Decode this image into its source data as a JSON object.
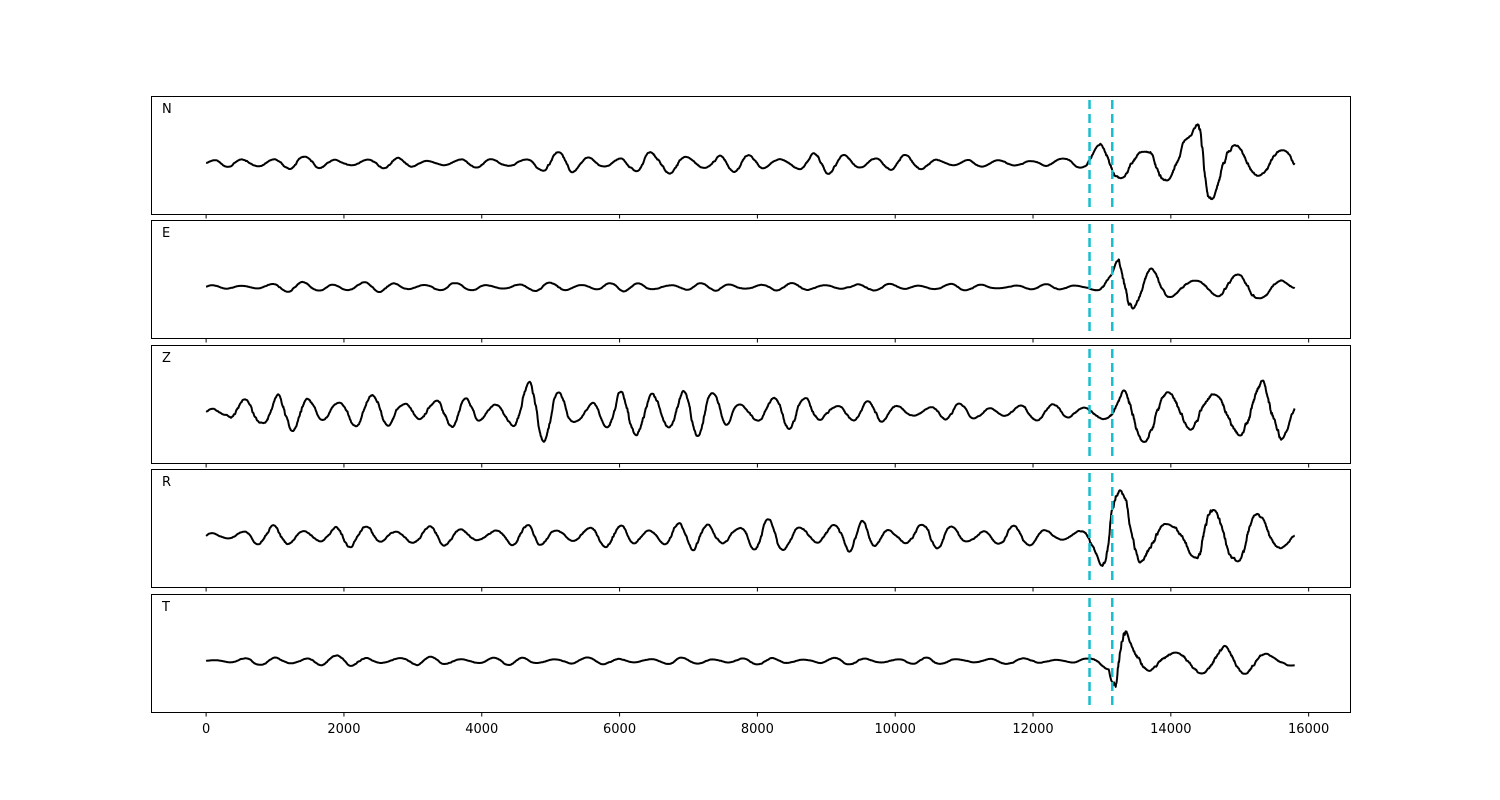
{
  "chart_data": {
    "type": "line",
    "title": "",
    "xlabel": "",
    "ylabel": "",
    "xlim": [
      -800,
      16600
    ],
    "x_ticks": [
      0,
      2000,
      4000,
      6000,
      8000,
      10000,
      12000,
      14000,
      16000
    ],
    "x_tick_labels": [
      "0",
      "2000",
      "4000",
      "6000",
      "8000",
      "10000",
      "12000",
      "14000",
      "16000"
    ],
    "grid": false,
    "legend": "none",
    "n_samples": 15800,
    "picks": [
      12820,
      13150
    ],
    "pick_color": "#17becf",
    "trace_color": "#000000",
    "panels": [
      {
        "label": "N",
        "series": [
          {
            "x": [
              0,
              500,
              900,
              1300,
              1500,
              2000,
              2600,
              3500,
              4300,
              4650,
              4950,
              5500,
              6100,
              6500,
              6800,
              7200,
              7800,
              8500,
              9200,
              10000,
              10800,
              11500,
              12200,
              12750,
              12950,
              13080,
              13200,
              13300,
              13450,
              13600,
              13750,
              13900,
              14100,
              14300,
              14440,
              14600,
              14800,
              15000,
              15200,
              15400,
              15600,
              15800
            ],
            "amplitude": [
              0.05,
              0.08,
              0.15,
              0.14,
              0.1,
              0.1,
              0.1,
              0.08,
              0.08,
              0.15,
              0.22,
              0.15,
              0.15,
              0.2,
              0.25,
              0.2,
              0.15,
              0.18,
              0.2,
              0.15,
              0.1,
              0.05,
              0.1,
              0.08,
              0.4,
              0.6,
              0.6,
              0.55,
              0.6,
              0.45,
              0.6,
              0.45,
              0.35,
              0.5,
              1.0,
              0.7,
              0.5,
              0.55,
              0.6,
              0.5,
              0.4,
              0.3
            ]
          }
        ]
      },
      {
        "label": "E",
        "series": [
          {
            "x": [
              0,
              500,
              1000,
              1500,
              2000,
              3000,
              4000,
              5000,
              6000,
              7000,
              8000,
              9000,
              10000,
              11000,
              12000,
              12800,
              13000,
              13150,
              13250,
              13300,
              13400,
              13550,
              13700,
              13900,
              14100,
              14400,
              14700,
              15000,
              15300,
              15600,
              15800
            ],
            "amplitude": [
              0.03,
              0.04,
              0.08,
              0.1,
              0.1,
              0.08,
              0.06,
              0.08,
              0.08,
              0.07,
              0.07,
              0.07,
              0.06,
              0.06,
              0.05,
              0.05,
              0.25,
              0.35,
              0.9,
              0.9,
              0.45,
              0.3,
              0.35,
              0.3,
              0.25,
              0.28,
              0.3,
              0.25,
              0.2,
              0.15,
              0.1
            ]
          }
        ]
      },
      {
        "label": "Z",
        "series": [
          {
            "x": [
              0,
              300,
              450,
              650,
              800,
              1200,
              1600,
              2100,
              3000,
              4000,
              4500,
              4700,
              5000,
              5500,
              6000,
              6400,
              6650,
              6900,
              7300,
              8000,
              8800,
              9500,
              10500,
              11500,
              12200,
              12800,
              13100,
              13300,
              13600,
              14000,
              14400,
              14700,
              15000,
              15300,
              15600,
              15800
            ],
            "amplitude": [
              0.05,
              0.1,
              0.55,
              0.55,
              0.3,
              0.35,
              0.35,
              0.3,
              0.3,
              0.25,
              0.45,
              0.6,
              0.5,
              0.35,
              0.35,
              0.55,
              0.7,
              0.6,
              0.35,
              0.3,
              0.3,
              0.2,
              0.15,
              0.15,
              0.15,
              0.2,
              0.2,
              0.4,
              0.55,
              0.5,
              0.85,
              0.55,
              0.5,
              0.55,
              0.6,
              0.3
            ]
          }
        ]
      },
      {
        "label": "R",
        "series": [
          {
            "x": [
              0,
              500,
              1000,
              2000,
              3000,
              4000,
              5000,
              6000,
              6500,
              7000,
              7500,
              8000,
              8600,
              9200,
              10000,
              11000,
              12000,
              12700,
              12950,
              13100,
              13200,
              13400,
              13600,
              13800,
              14000,
              14200,
              14440,
              14600,
              14900,
              15200,
              15500,
              15800
            ],
            "amplitude": [
              0.08,
              0.12,
              0.2,
              0.2,
              0.18,
              0.18,
              0.2,
              0.2,
              0.25,
              0.25,
              0.3,
              0.3,
              0.28,
              0.3,
              0.25,
              0.2,
              0.18,
              0.15,
              0.5,
              0.8,
              0.85,
              0.75,
              0.6,
              0.55,
              0.45,
              0.55,
              1.0,
              0.6,
              0.45,
              0.45,
              0.45,
              0.3
            ]
          }
        ]
      },
      {
        "label": "T",
        "series": [
          {
            "x": [
              0,
              500,
              1000,
              1500,
              2000,
              3000,
              4000,
              5000,
              6000,
              7000,
              8000,
              9000,
              10000,
              11000,
              12000,
              12800,
              13100,
              13220,
              13320,
              13400,
              13600,
              13800,
              14000,
              14300,
              14600,
              14900,
              15200,
              15500,
              15800
            ],
            "amplitude": [
              0.03,
              0.05,
              0.08,
              0.1,
              0.1,
              0.08,
              0.07,
              0.07,
              0.06,
              0.06,
              0.06,
              0.06,
              0.06,
              0.06,
              0.05,
              0.05,
              0.15,
              0.9,
              0.9,
              0.45,
              0.35,
              0.4,
              0.35,
              0.3,
              0.3,
              0.25,
              0.25,
              0.2,
              0.2
            ]
          }
        ]
      }
    ]
  }
}
